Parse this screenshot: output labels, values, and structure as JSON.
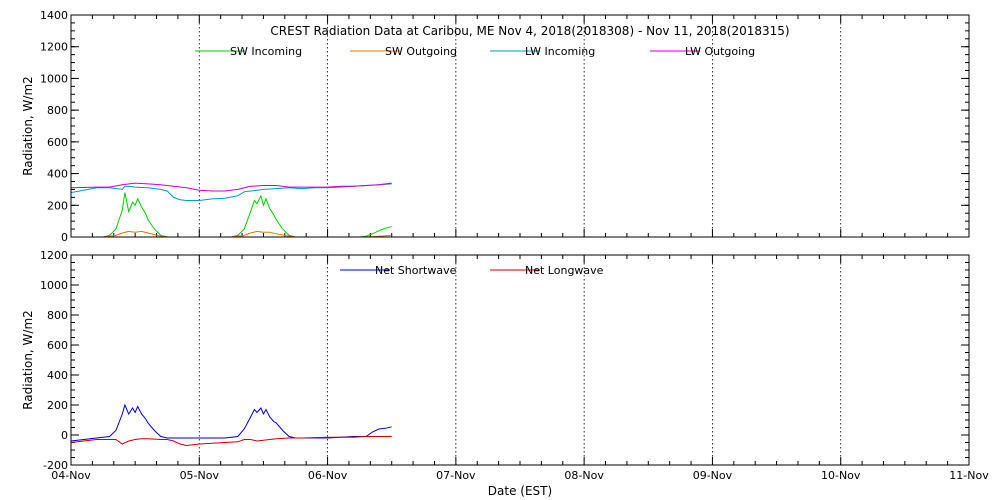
{
  "title": "CREST Radiation Data at Caribou, ME   Nov  4, 2018(2018308) - Nov 11, 2018(2018315)",
  "xlabel": "Date (EST)",
  "colors": {
    "sw_incoming": "#00cc00",
    "sw_outgoing": "#e07800",
    "lw_incoming": "#0099cc",
    "lw_outgoing": "#cc00cc",
    "net_shortwave": "#0000cc",
    "net_longwave": "#cc0000"
  },
  "chart_data": [
    {
      "type": "line",
      "ylabel": "Radiation, W/m2",
      "xlim": [
        0,
        7
      ],
      "ylim": [
        0,
        1400
      ],
      "y_ticks": [
        0,
        200,
        400,
        600,
        800,
        1000,
        1200,
        1400
      ],
      "x_ticks": [
        "04-Nov",
        "05-Nov",
        "06-Nov",
        "07-Nov",
        "08-Nov",
        "09-Nov",
        "10-Nov",
        "11-Nov"
      ],
      "grid": true,
      "legend_position": "top",
      "series": [
        {
          "name": "SW Incoming",
          "x": [
            0.25,
            0.3,
            0.35,
            0.4,
            0.42,
            0.45,
            0.48,
            0.5,
            0.52,
            0.55,
            0.58,
            0.6,
            0.65,
            0.7,
            0.75,
            1.25,
            1.3,
            1.35,
            1.4,
            1.43,
            1.45,
            1.48,
            1.5,
            1.52,
            1.55,
            1.58,
            1.6,
            1.65,
            1.7,
            1.75,
            2.25,
            2.3,
            2.35,
            2.4,
            2.45,
            2.5
          ],
          "y": [
            0,
            10,
            50,
            170,
            280,
            160,
            220,
            200,
            240,
            190,
            150,
            110,
            50,
            10,
            0,
            0,
            10,
            50,
            160,
            230,
            210,
            260,
            200,
            240,
            180,
            140,
            110,
            50,
            10,
            0,
            0,
            5,
            20,
            40,
            55,
            65
          ]
        },
        {
          "name": "SW Outgoing",
          "x": [
            0.25,
            0.35,
            0.4,
            0.45,
            0.5,
            0.55,
            0.6,
            0.7,
            0.75,
            1.25,
            1.35,
            1.4,
            1.45,
            1.5,
            1.55,
            1.6,
            1.7,
            1.75,
            2.3,
            2.4,
            2.5
          ],
          "y": [
            0,
            10,
            25,
            35,
            30,
            35,
            25,
            5,
            0,
            0,
            10,
            25,
            35,
            30,
            30,
            20,
            5,
            0,
            0,
            5,
            10
          ]
        },
        {
          "name": "LW Incoming",
          "x": [
            0.0,
            0.2,
            0.3,
            0.4,
            0.42,
            0.45,
            0.5,
            0.6,
            0.7,
            0.75,
            0.8,
            0.85,
            0.9,
            1.0,
            1.1,
            1.2,
            1.3,
            1.35,
            1.4,
            1.45,
            1.5,
            1.6,
            1.7,
            1.8,
            1.9,
            2.0,
            2.1,
            2.2,
            2.3,
            2.4,
            2.5
          ],
          "y": [
            280,
            310,
            310,
            300,
            320,
            320,
            315,
            310,
            300,
            290,
            250,
            235,
            230,
            230,
            240,
            245,
            260,
            285,
            290,
            295,
            300,
            305,
            310,
            305,
            310,
            310,
            315,
            320,
            325,
            330,
            335
          ]
        },
        {
          "name": "LW Outgoing",
          "x": [
            0.0,
            0.2,
            0.3,
            0.4,
            0.5,
            0.6,
            0.7,
            0.8,
            0.9,
            1.0,
            1.1,
            1.2,
            1.3,
            1.4,
            1.5,
            1.6,
            1.7,
            1.8,
            1.9,
            2.0,
            2.1,
            2.2,
            2.3,
            2.4,
            2.5
          ],
          "y": [
            310,
            315,
            315,
            330,
            340,
            335,
            330,
            320,
            310,
            295,
            290,
            290,
            300,
            320,
            325,
            325,
            315,
            315,
            315,
            315,
            320,
            320,
            325,
            330,
            340
          ]
        }
      ]
    },
    {
      "type": "line",
      "ylabel": "Radiation, W/m2",
      "xlim": [
        0,
        7
      ],
      "ylim": [
        -200,
        1200
      ],
      "y_ticks": [
        -200,
        0,
        200,
        400,
        600,
        800,
        1000,
        1200
      ],
      "x_ticks": [
        "04-Nov",
        "05-Nov",
        "06-Nov",
        "07-Nov",
        "08-Nov",
        "09-Nov",
        "10-Nov",
        "11-Nov"
      ],
      "grid": true,
      "legend_position": "top",
      "series": [
        {
          "name": "Net Shortwave",
          "x": [
            0.0,
            0.2,
            0.3,
            0.35,
            0.4,
            0.42,
            0.45,
            0.48,
            0.5,
            0.52,
            0.55,
            0.58,
            0.6,
            0.65,
            0.7,
            0.75,
            0.8,
            1.0,
            1.2,
            1.3,
            1.35,
            1.4,
            1.43,
            1.45,
            1.48,
            1.5,
            1.52,
            1.55,
            1.58,
            1.6,
            1.65,
            1.7,
            1.75,
            1.8,
            2.0,
            2.2,
            2.3,
            2.35,
            2.4,
            2.45,
            2.5
          ],
          "y": [
            -40,
            -20,
            -10,
            30,
            140,
            200,
            140,
            180,
            150,
            190,
            140,
            110,
            80,
            30,
            -10,
            -20,
            -20,
            -20,
            -20,
            -10,
            40,
            120,
            170,
            150,
            180,
            140,
            170,
            120,
            90,
            80,
            30,
            -10,
            -20,
            -20,
            -20,
            -10,
            -10,
            20,
            40,
            45,
            55
          ]
        },
        {
          "name": "Net Longwave",
          "x": [
            0.0,
            0.1,
            0.2,
            0.3,
            0.35,
            0.4,
            0.45,
            0.5,
            0.55,
            0.6,
            0.7,
            0.75,
            0.8,
            0.85,
            0.9,
            1.0,
            1.1,
            1.2,
            1.3,
            1.35,
            1.4,
            1.45,
            1.5,
            1.55,
            1.6,
            1.7,
            1.8,
            2.0,
            2.2,
            2.3,
            2.4,
            2.5
          ],
          "y": [
            -50,
            -40,
            -30,
            -30,
            -30,
            -60,
            -40,
            -30,
            -25,
            -25,
            -30,
            -30,
            -40,
            -60,
            -70,
            -60,
            -55,
            -50,
            -45,
            -30,
            -30,
            -40,
            -35,
            -30,
            -25,
            -20,
            -20,
            -15,
            -15,
            -10,
            -10,
            -10
          ]
        }
      ]
    }
  ]
}
